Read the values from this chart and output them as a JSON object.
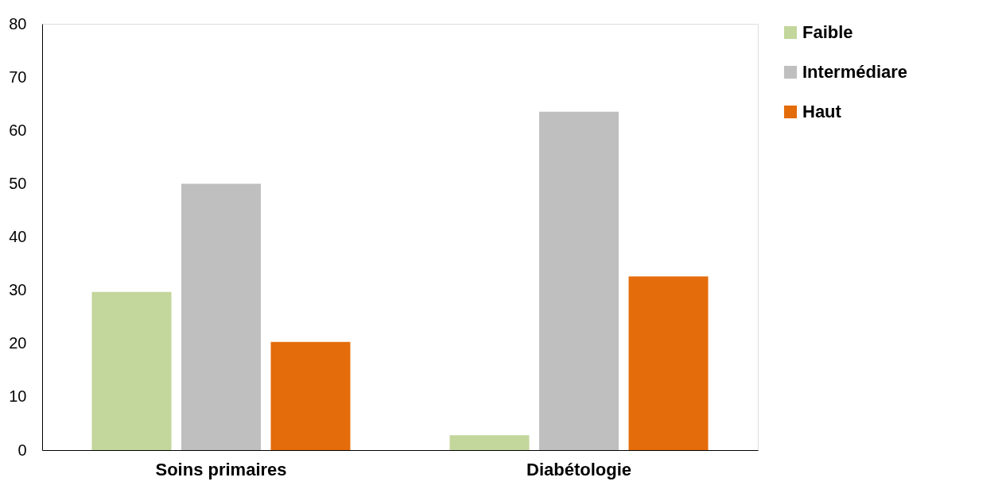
{
  "chart_data": {
    "type": "bar",
    "categories": [
      "Soins primaires",
      "Diabétologie"
    ],
    "series": [
      {
        "name": "Faible",
        "color": "#c3d69b",
        "values": [
          29.7,
          2.8
        ]
      },
      {
        "name": "Intermédiare",
        "color": "#bfbfbf",
        "values": [
          50,
          63.5
        ]
      },
      {
        "name": "Haut",
        "color": "#e46c0a",
        "values": [
          20.3,
          32.6
        ]
      }
    ],
    "ylim": [
      0,
      80
    ],
    "yticks": [
      0,
      10,
      20,
      30,
      40,
      50,
      60,
      70,
      80
    ],
    "grid": false,
    "legend": "top right"
  }
}
